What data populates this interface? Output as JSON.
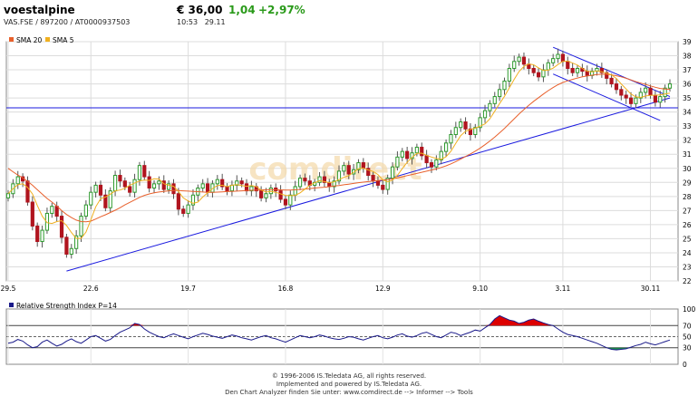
{
  "header": {
    "name": "voestalpine",
    "ids": "VAS.FSE  /  897200  /  AT0000937503",
    "price": "€ 36,00",
    "change": "1,04",
    "change_pct": "+2,97%",
    "time": "10:53",
    "date": "29.11"
  },
  "colors": {
    "up": "#2e9a2e",
    "down": "#b0141e",
    "sma20": "#e8602c",
    "sma5": "#f0b020",
    "trend": "#1a1adf",
    "rsi": "#1a1a8a",
    "rsi_over": "#dd0000",
    "rsi_under": "#1a8a4a"
  },
  "watermark": "comdirect",
  "chart_data": [
    {
      "type": "candlestick",
      "legend": [
        "SMA 20",
        "SMA 5"
      ],
      "legend_position": "top-left",
      "x_ticks": [
        {
          "label": "29.5",
          "i": 0
        },
        {
          "label": "22.6",
          "i": 17
        },
        {
          "label": "19.7",
          "i": 37
        },
        {
          "label": "16.8",
          "i": 57
        },
        {
          "label": "12.9",
          "i": 77
        },
        {
          "label": "9.10",
          "i": 97
        },
        {
          "label": "3.11",
          "i": 114
        },
        {
          "label": "30.11",
          "i": 132
        }
      ],
      "ylim": [
        22,
        39
      ],
      "y_ticks": [
        22,
        23,
        24,
        25,
        26,
        27,
        28,
        29,
        30,
        31,
        32,
        33,
        34,
        35,
        36,
        37,
        38,
        39
      ],
      "grid": true,
      "closes": [
        28.2,
        28.9,
        29.4,
        29.1,
        27.6,
        25.9,
        24.8,
        25.6,
        26.8,
        27.3,
        26.6,
        25.1,
        23.9,
        24.3,
        25.2,
        26.6,
        27.4,
        28.3,
        28.8,
        28.1,
        27.2,
        28.4,
        29.5,
        29.1,
        28.7,
        28.3,
        29.2,
        30.2,
        29.4,
        28.6,
        28.9,
        29.1,
        28.5,
        28.9,
        28.2,
        27.1,
        26.8,
        27.4,
        28.1,
        28.6,
        28.9,
        28.3,
        28.9,
        29.2,
        28.7,
        28.4,
        28.8,
        29.1,
        28.9,
        28.4,
        28.7,
        28.4,
        27.9,
        28.2,
        28.6,
        28.4,
        27.8,
        27.4,
        28.1,
        28.7,
        29.3,
        29.1,
        28.8,
        29.0,
        29.4,
        29.0,
        28.7,
        29.1,
        29.8,
        30.2,
        29.6,
        29.9,
        30.4,
        30.0,
        29.5,
        29.1,
        28.8,
        28.5,
        29.3,
        30.1,
        30.8,
        31.2,
        30.7,
        31.1,
        31.5,
        30.9,
        30.4,
        30.1,
        30.6,
        31.2,
        31.8,
        32.4,
        32.9,
        33.3,
        32.8,
        32.4,
        32.9,
        33.6,
        34.1,
        34.6,
        35.1,
        35.6,
        36.2,
        37.1,
        37.6,
        37.9,
        37.4,
        37.1,
        36.8,
        36.5,
        37.0,
        37.5,
        37.8,
        38.1,
        37.6,
        37.1,
        36.8,
        37.1,
        36.9,
        36.6,
        36.9,
        37.1,
        36.8,
        36.4,
        36.0,
        35.6,
        35.2,
        35.0,
        34.6,
        35.0,
        35.4,
        35.7,
        35.2,
        34.7,
        35.1,
        35.7,
        36.0
      ],
      "sma20_values": [
        30.0,
        29.75,
        29.52,
        29.32,
        29.08,
        28.8,
        28.48,
        28.16,
        27.86,
        27.6,
        27.32,
        27.0,
        26.72,
        26.5,
        26.32,
        26.22,
        26.2,
        26.25,
        26.4,
        26.56,
        26.7,
        26.86,
        27.02,
        27.2,
        27.4,
        27.58,
        27.76,
        27.94,
        28.08,
        28.18,
        28.26,
        28.32,
        28.36,
        28.4,
        28.42,
        28.42,
        28.4,
        28.38,
        28.36,
        28.34,
        28.32,
        28.3,
        28.3,
        28.31,
        28.33,
        28.35,
        28.36,
        28.38,
        28.4,
        28.42,
        28.44,
        28.46,
        28.47,
        28.48,
        28.48,
        28.48,
        28.47,
        28.46,
        28.46,
        28.48,
        28.5,
        28.53,
        28.56,
        28.6,
        28.63,
        28.66,
        28.7,
        28.74,
        28.78,
        28.83,
        28.88,
        28.93,
        28.98,
        29.02,
        29.06,
        29.1,
        29.13,
        29.16,
        29.2,
        29.25,
        29.32,
        29.4,
        29.48,
        29.56,
        29.64,
        29.72,
        29.8,
        29.88,
        29.96,
        30.06,
        30.18,
        30.32,
        30.48,
        30.66,
        30.84,
        31.02,
        31.22,
        31.44,
        31.68,
        31.94,
        32.22,
        32.52,
        32.84,
        33.18,
        33.52,
        33.86,
        34.18,
        34.48,
        34.76,
        35.02,
        35.28,
        35.52,
        35.74,
        35.94,
        36.1,
        36.22,
        36.32,
        36.42,
        36.5,
        36.56,
        36.62,
        36.66,
        36.68,
        36.68,
        36.64,
        36.58,
        36.5,
        36.4,
        36.28,
        36.16,
        36.06,
        35.96,
        35.86,
        35.76,
        35.68,
        35.64,
        35.62
      ]
    },
    {
      "type": "line",
      "title": "Relative Strength Index P=14",
      "ylim": [
        0,
        100
      ],
      "y_ticks": [
        100,
        70,
        50,
        30,
        0
      ],
      "levels": [
        70,
        50,
        30
      ],
      "values": [
        38,
        40,
        45,
        42,
        35,
        30,
        32,
        40,
        44,
        38,
        33,
        36,
        42,
        46,
        41,
        38,
        44,
        50,
        52,
        47,
        42,
        45,
        52,
        58,
        62,
        66,
        74,
        72,
        64,
        58,
        54,
        50,
        48,
        52,
        55,
        52,
        49,
        46,
        50,
        53,
        56,
        54,
        51,
        49,
        47,
        50,
        53,
        51,
        48,
        46,
        44,
        47,
        50,
        52,
        48,
        46,
        43,
        40,
        44,
        48,
        52,
        50,
        48,
        50,
        53,
        51,
        48,
        46,
        45,
        47,
        50,
        49,
        46,
        44,
        47,
        50,
        52,
        48,
        46,
        49,
        53,
        55,
        51,
        49,
        52,
        56,
        58,
        54,
        50,
        48,
        53,
        58,
        56,
        52,
        55,
        58,
        62,
        60,
        66,
        72,
        82,
        88,
        84,
        80,
        78,
        74,
        76,
        80,
        82,
        78,
        75,
        72,
        70,
        64,
        58,
        54,
        52,
        50,
        47,
        44,
        41,
        38,
        34,
        30,
        27,
        26,
        27,
        28,
        31,
        34,
        36,
        40,
        37,
        35,
        38,
        41,
        44
      ]
    }
  ],
  "footer": {
    "line1": "© 1996-2006 IS.Teledata AG, all rights reserved.",
    "line2": "Implemented and powered by IS.Teledata AG.",
    "line3": "Den Chart Analyzer finden Sie unter: www.comdirect.de --> Informer --> Tools"
  }
}
